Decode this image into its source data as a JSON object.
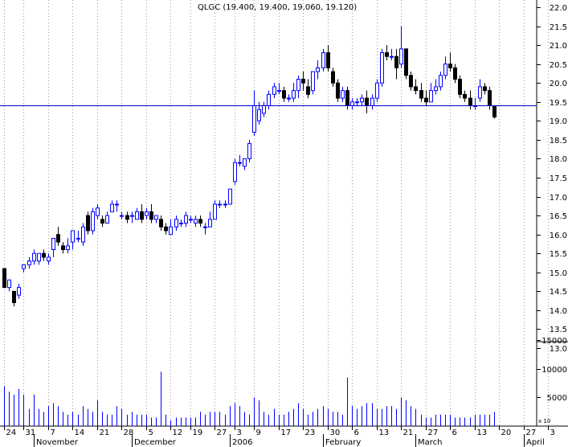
{
  "chart_data": {
    "type": "candlestick",
    "title": "QLGC (19.400, 19.400, 19.060, 19.120)",
    "price_axis": {
      "ylim": [
        13.0,
        22.0
      ],
      "ticks": [
        "22.0",
        "21.5",
        "21.0",
        "20.5",
        "20.0",
        "19.5",
        "19.0",
        "18.5",
        "18.0",
        "17.5",
        "17.0",
        "16.5",
        "16.0",
        "15.5",
        "15.0",
        "14.5",
        "14.0",
        "13.5",
        "13.0"
      ]
    },
    "volume_axis": {
      "ylim": [
        0,
        17000
      ],
      "ticks": [
        "15000",
        "10000",
        "5000"
      ],
      "scale_label": "x 10"
    },
    "x_axis": {
      "day_ticks": [
        "24",
        "31",
        "7",
        "14",
        "21",
        "28",
        "5",
        "12",
        "19",
        "27",
        "3",
        "9",
        "17",
        "23",
        "30",
        "6",
        "13",
        "21",
        "27",
        "6",
        "13",
        "20",
        "27",
        "3"
      ],
      "month_labels": [
        "November",
        "December",
        "2006",
        "February",
        "March",
        "April"
      ]
    },
    "horizontal_line": 19.4,
    "grid": "vertical dotted",
    "candles": [
      [
        15.1,
        14.6,
        15.1,
        14.6,
        7000
      ],
      [
        14.6,
        14.8,
        14.5,
        14.7,
        6000
      ],
      [
        14.5,
        14.2,
        14.5,
        14.1,
        5500
      ],
      [
        14.4,
        14.6,
        14.7,
        14.3,
        6500
      ],
      [
        15.1,
        15.2,
        15.2,
        15.0,
        5500
      ],
      [
        15.2,
        15.3,
        15.4,
        15.1,
        3000
      ],
      [
        15.3,
        15.5,
        15.6,
        15.2,
        5500
      ],
      [
        15.3,
        15.5,
        15.5,
        15.2,
        3000
      ],
      [
        15.5,
        15.4,
        15.6,
        15.3,
        2500
      ],
      [
        15.3,
        15.4,
        15.5,
        15.2,
        3500
      ],
      [
        15.6,
        15.9,
        15.9,
        15.4,
        4000
      ],
      [
        16.0,
        15.8,
        16.2,
        15.7,
        3500
      ],
      [
        15.7,
        15.6,
        15.8,
        15.5,
        2500
      ],
      [
        15.6,
        15.7,
        15.9,
        15.5,
        2000
      ],
      [
        15.8,
        16.1,
        16.0,
        15.6,
        2500
      ],
      [
        15.9,
        15.9,
        16.1,
        15.8,
        2000
      ],
      [
        15.8,
        16.2,
        16.3,
        15.7,
        3500
      ],
      [
        16.5,
        16.1,
        16.6,
        16.0,
        3000
      ],
      [
        16.1,
        16.6,
        16.7,
        16.0,
        2500
      ],
      [
        16.5,
        16.7,
        16.8,
        16.4,
        4500
      ],
      [
        16.4,
        16.3,
        16.5,
        16.2,
        2500
      ],
      [
        16.3,
        16.5,
        16.6,
        16.3,
        2000
      ],
      [
        16.6,
        16.8,
        16.9,
        16.6,
        2000
      ],
      [
        16.8,
        16.8,
        16.9,
        16.6,
        3500
      ],
      [
        16.5,
        16.5,
        16.6,
        16.4,
        3000
      ],
      [
        16.5,
        16.4,
        16.6,
        16.3,
        2000
      ],
      [
        16.5,
        16.5,
        16.6,
        16.3,
        2500
      ],
      [
        16.4,
        16.6,
        16.7,
        16.4,
        2000
      ],
      [
        16.6,
        16.4,
        16.8,
        16.3,
        2000
      ],
      [
        16.5,
        16.6,
        16.7,
        16.4,
        2000
      ],
      [
        16.6,
        16.4,
        16.8,
        16.3,
        1500
      ],
      [
        16.4,
        16.5,
        16.5,
        16.3,
        1500
      ],
      [
        16.4,
        16.2,
        16.5,
        16.1,
        9500
      ],
      [
        16.2,
        16.1,
        16.3,
        16.0,
        2000
      ],
      [
        16.0,
        16.2,
        16.4,
        16.0,
        1000
      ],
      [
        16.2,
        16.4,
        16.5,
        16.1,
        1500
      ],
      [
        16.3,
        16.3,
        16.4,
        16.2,
        1500
      ],
      [
        16.3,
        16.5,
        16.6,
        16.2,
        1500
      ],
      [
        16.4,
        16.4,
        16.5,
        16.3,
        1500
      ],
      [
        16.3,
        16.4,
        16.5,
        16.2,
        1500
      ],
      [
        16.4,
        16.3,
        16.5,
        16.2,
        2500
      ],
      [
        16.2,
        16.2,
        16.3,
        16.0,
        2000
      ],
      [
        16.2,
        16.4,
        16.6,
        16.2,
        2500
      ],
      [
        16.4,
        16.8,
        16.9,
        16.4,
        2500
      ],
      [
        16.8,
        16.8,
        16.9,
        16.7,
        2500
      ],
      [
        16.8,
        16.8,
        16.9,
        16.7,
        2000
      ],
      [
        16.8,
        17.2,
        17.2,
        16.8,
        3500
      ],
      [
        17.4,
        17.9,
        18.0,
        17.3,
        4000
      ],
      [
        17.9,
        17.9,
        18.1,
        17.8,
        3500
      ],
      [
        17.8,
        18.0,
        18.0,
        17.7,
        2500
      ],
      [
        18.0,
        18.4,
        18.5,
        17.9,
        2000
      ],
      [
        18.7,
        19.4,
        19.8,
        18.6,
        5000
      ],
      [
        19.0,
        19.3,
        19.5,
        18.9,
        4500
      ],
      [
        19.2,
        19.4,
        19.5,
        19.1,
        2500
      ],
      [
        19.4,
        19.7,
        19.8,
        19.3,
        2000
      ],
      [
        19.7,
        19.9,
        20.0,
        19.6,
        3000
      ],
      [
        19.8,
        19.8,
        20.0,
        19.7,
        2000
      ],
      [
        19.8,
        19.6,
        19.9,
        19.5,
        2000
      ],
      [
        19.6,
        19.6,
        19.7,
        19.5,
        2500
      ],
      [
        19.6,
        19.8,
        20.0,
        19.5,
        3000
      ],
      [
        19.8,
        20.1,
        20.2,
        19.6,
        4000
      ],
      [
        20.1,
        20.0,
        20.3,
        19.8,
        3000
      ],
      [
        19.9,
        19.7,
        20.1,
        19.6,
        2000
      ],
      [
        19.8,
        20.3,
        20.3,
        19.7,
        2500
      ],
      [
        20.3,
        20.4,
        20.6,
        20.1,
        3000
      ],
      [
        20.4,
        20.8,
        20.9,
        20.3,
        3500
      ],
      [
        20.8,
        20.4,
        21.0,
        20.3,
        3000
      ],
      [
        20.3,
        20.0,
        20.4,
        19.9,
        2500
      ],
      [
        20.0,
        19.6,
        20.1,
        19.5,
        2500
      ],
      [
        19.6,
        19.8,
        19.9,
        19.5,
        2000
      ],
      [
        19.8,
        19.4,
        19.9,
        19.3,
        8500
      ],
      [
        19.4,
        19.5,
        19.6,
        19.3,
        3500
      ],
      [
        19.5,
        19.5,
        19.6,
        19.4,
        3000
      ],
      [
        19.5,
        19.6,
        19.7,
        19.4,
        3500
      ],
      [
        19.6,
        19.4,
        19.8,
        19.2,
        4000
      ],
      [
        19.4,
        19.6,
        19.7,
        19.3,
        4000
      ],
      [
        19.6,
        20.0,
        20.1,
        19.5,
        3000
      ],
      [
        20.0,
        20.8,
        20.9,
        19.9,
        3000
      ],
      [
        20.8,
        20.7,
        21.0,
        20.6,
        3500
      ],
      [
        20.7,
        20.7,
        20.9,
        20.6,
        3500
      ],
      [
        20.7,
        20.4,
        20.9,
        20.1,
        3000
      ],
      [
        20.5,
        20.9,
        21.5,
        20.4,
        5000
      ],
      [
        20.9,
        20.2,
        20.9,
        20.1,
        4500
      ],
      [
        20.2,
        19.9,
        20.3,
        19.8,
        3500
      ],
      [
        19.9,
        19.8,
        20.1,
        19.7,
        3000
      ],
      [
        19.8,
        19.6,
        20.0,
        19.5,
        2000
      ],
      [
        19.6,
        19.5,
        19.8,
        19.4,
        1500
      ],
      [
        19.5,
        19.8,
        20.0,
        19.5,
        1500
      ],
      [
        19.8,
        19.9,
        20.1,
        19.7,
        2000
      ],
      [
        19.9,
        20.2,
        20.3,
        19.8,
        2000
      ],
      [
        20.2,
        20.5,
        20.7,
        20.1,
        2000
      ],
      [
        20.5,
        20.4,
        20.8,
        20.3,
        2000
      ],
      [
        20.4,
        20.1,
        20.5,
        20.0,
        1500
      ],
      [
        20.1,
        19.7,
        20.2,
        19.6,
        1500
      ],
      [
        19.7,
        19.6,
        19.8,
        19.5,
        1500
      ],
      [
        19.6,
        19.4,
        19.8,
        19.3,
        1500
      ],
      [
        19.4,
        19.4,
        19.6,
        19.3,
        2000
      ],
      [
        19.6,
        19.9,
        20.1,
        19.5,
        2000
      ],
      [
        19.9,
        19.8,
        20.0,
        19.7,
        2000
      ],
      [
        19.8,
        19.4,
        19.9,
        19.3,
        2000
      ],
      [
        19.4,
        19.1,
        19.4,
        19.06,
        2500
      ]
    ]
  }
}
